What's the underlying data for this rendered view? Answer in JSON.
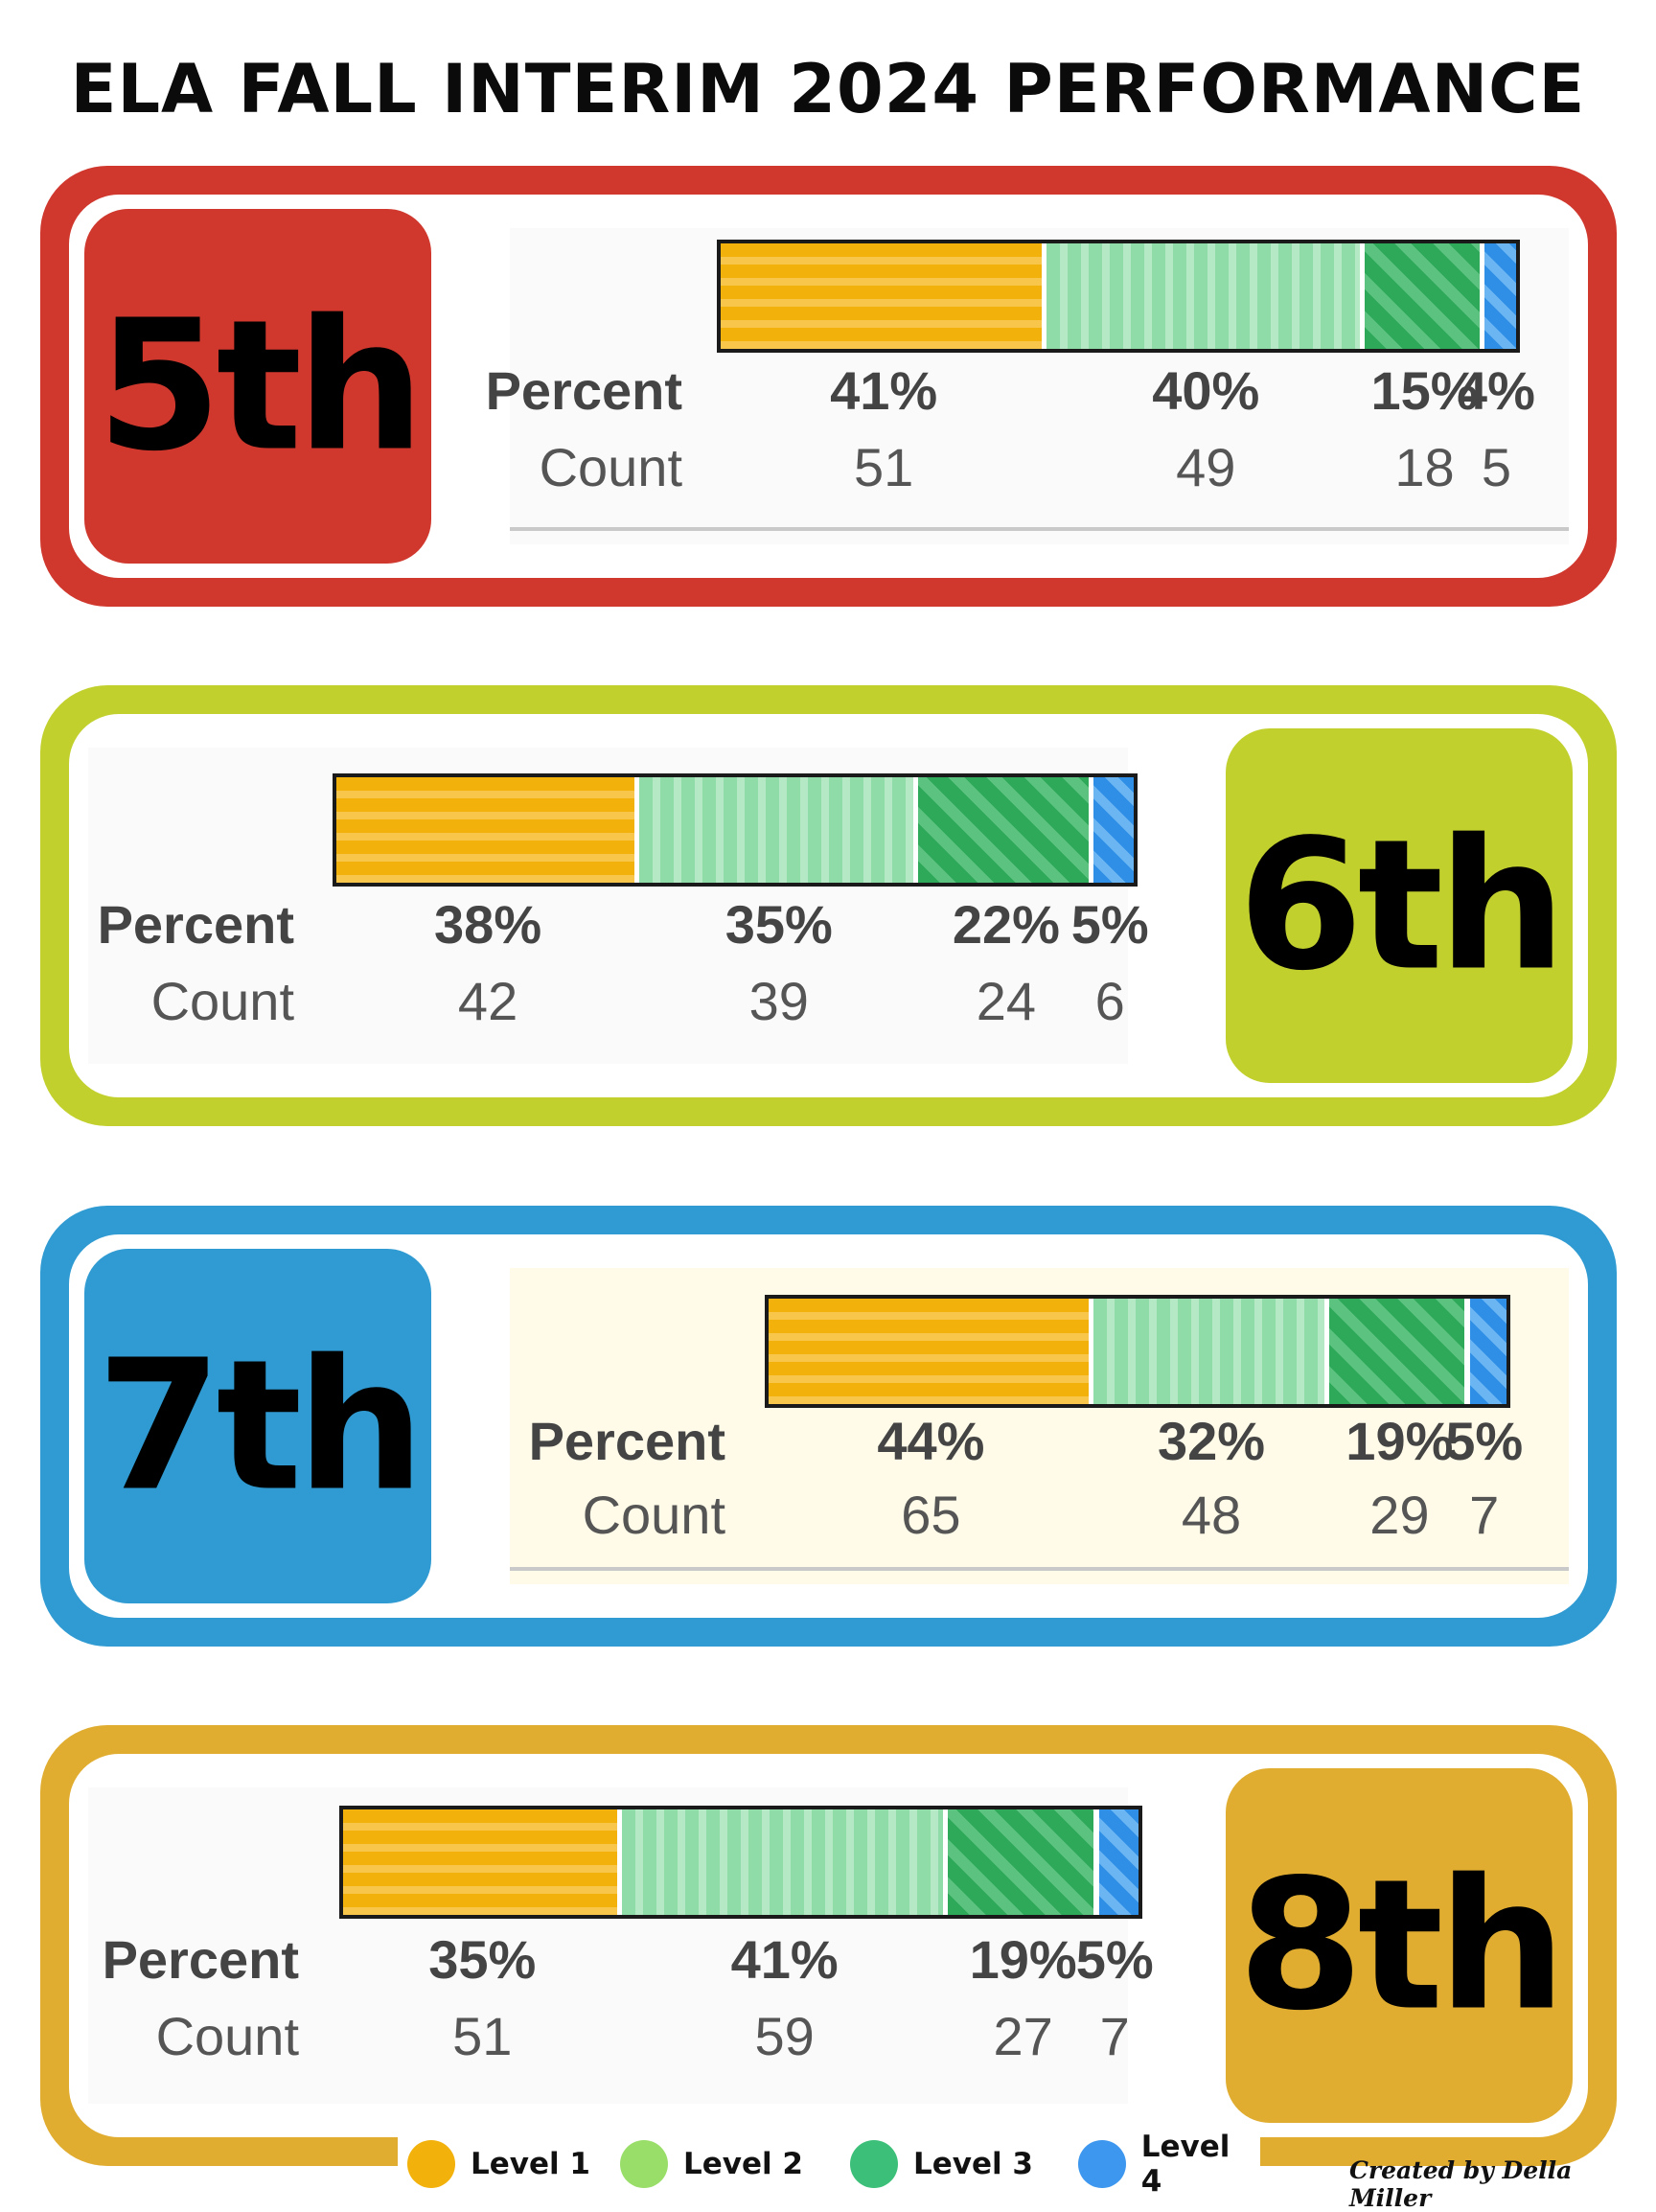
{
  "title": "ELA FALL INTERIM 2024 PERFORMANCE",
  "row_labels": {
    "percent": "Percent",
    "count": "Count"
  },
  "colors": {
    "level1": "#f2b10b",
    "level2": "#9ade6a",
    "level3": "#3cbf78",
    "level4": "#3d97ee",
    "grade5": "#d0382e",
    "grade6": "#c2d02e",
    "grade7": "#2f9bd2",
    "grade8": "#e0ad30"
  },
  "legend": [
    {
      "label": "Level 1",
      "color": "#f2b10b"
    },
    {
      "label": "Level 2",
      "color": "#9ade6a"
    },
    {
      "label": "Level 3",
      "color": "#3cbf78"
    },
    {
      "label": "Level 4",
      "color": "#3d97ee"
    }
  ],
  "credit": "Created by Della Miller",
  "chart_data": [
    {
      "type": "bar",
      "stacked": true,
      "orientation": "horizontal",
      "grade": "5th",
      "series": [
        {
          "name": "Level 1",
          "percent_label": "41%",
          "value": 41,
          "count": "51"
        },
        {
          "name": "Level 2",
          "percent_label": "40%",
          "value": 40,
          "count": "49"
        },
        {
          "name": "Level 3",
          "percent_label": "15%",
          "value": 15,
          "count": "18"
        },
        {
          "name": "Level 4",
          "percent_label": "4%",
          "value": 4,
          "count": "5"
        }
      ]
    },
    {
      "type": "bar",
      "stacked": true,
      "orientation": "horizontal",
      "grade": "6th",
      "series": [
        {
          "name": "Level 1",
          "percent_label": "38%",
          "value": 38,
          "count": "42"
        },
        {
          "name": "Level 2",
          "percent_label": "35%",
          "value": 35,
          "count": "39"
        },
        {
          "name": "Level 3",
          "percent_label": "22%",
          "value": 22,
          "count": "24"
        },
        {
          "name": "Level 4",
          "percent_label": "5%",
          "value": 5,
          "count": "6"
        }
      ]
    },
    {
      "type": "bar",
      "stacked": true,
      "orientation": "horizontal",
      "grade": "7th",
      "series": [
        {
          "name": "Level 1",
          "percent_label": "44%",
          "value": 44,
          "count": "65"
        },
        {
          "name": "Level 2",
          "percent_label": "32%",
          "value": 32,
          "count": "48"
        },
        {
          "name": "Level 3",
          "percent_label": "19%",
          "value": 19,
          "count": "29"
        },
        {
          "name": "Level 4",
          "percent_label": "5%",
          "value": 5,
          "count": "7"
        }
      ]
    },
    {
      "type": "bar",
      "stacked": true,
      "orientation": "horizontal",
      "grade": "8th",
      "series": [
        {
          "name": "Level 1",
          "percent_label": "35%",
          "value": 35,
          "count": "51"
        },
        {
          "name": "Level 2",
          "percent_label": "41%",
          "value": 41,
          "count": "59"
        },
        {
          "name": "Level 3",
          "percent_label": "19%",
          "value": 19,
          "count": "27"
        },
        {
          "name": "Level 4",
          "percent_label": "5%",
          "value": 5,
          "count": "7"
        }
      ]
    }
  ]
}
